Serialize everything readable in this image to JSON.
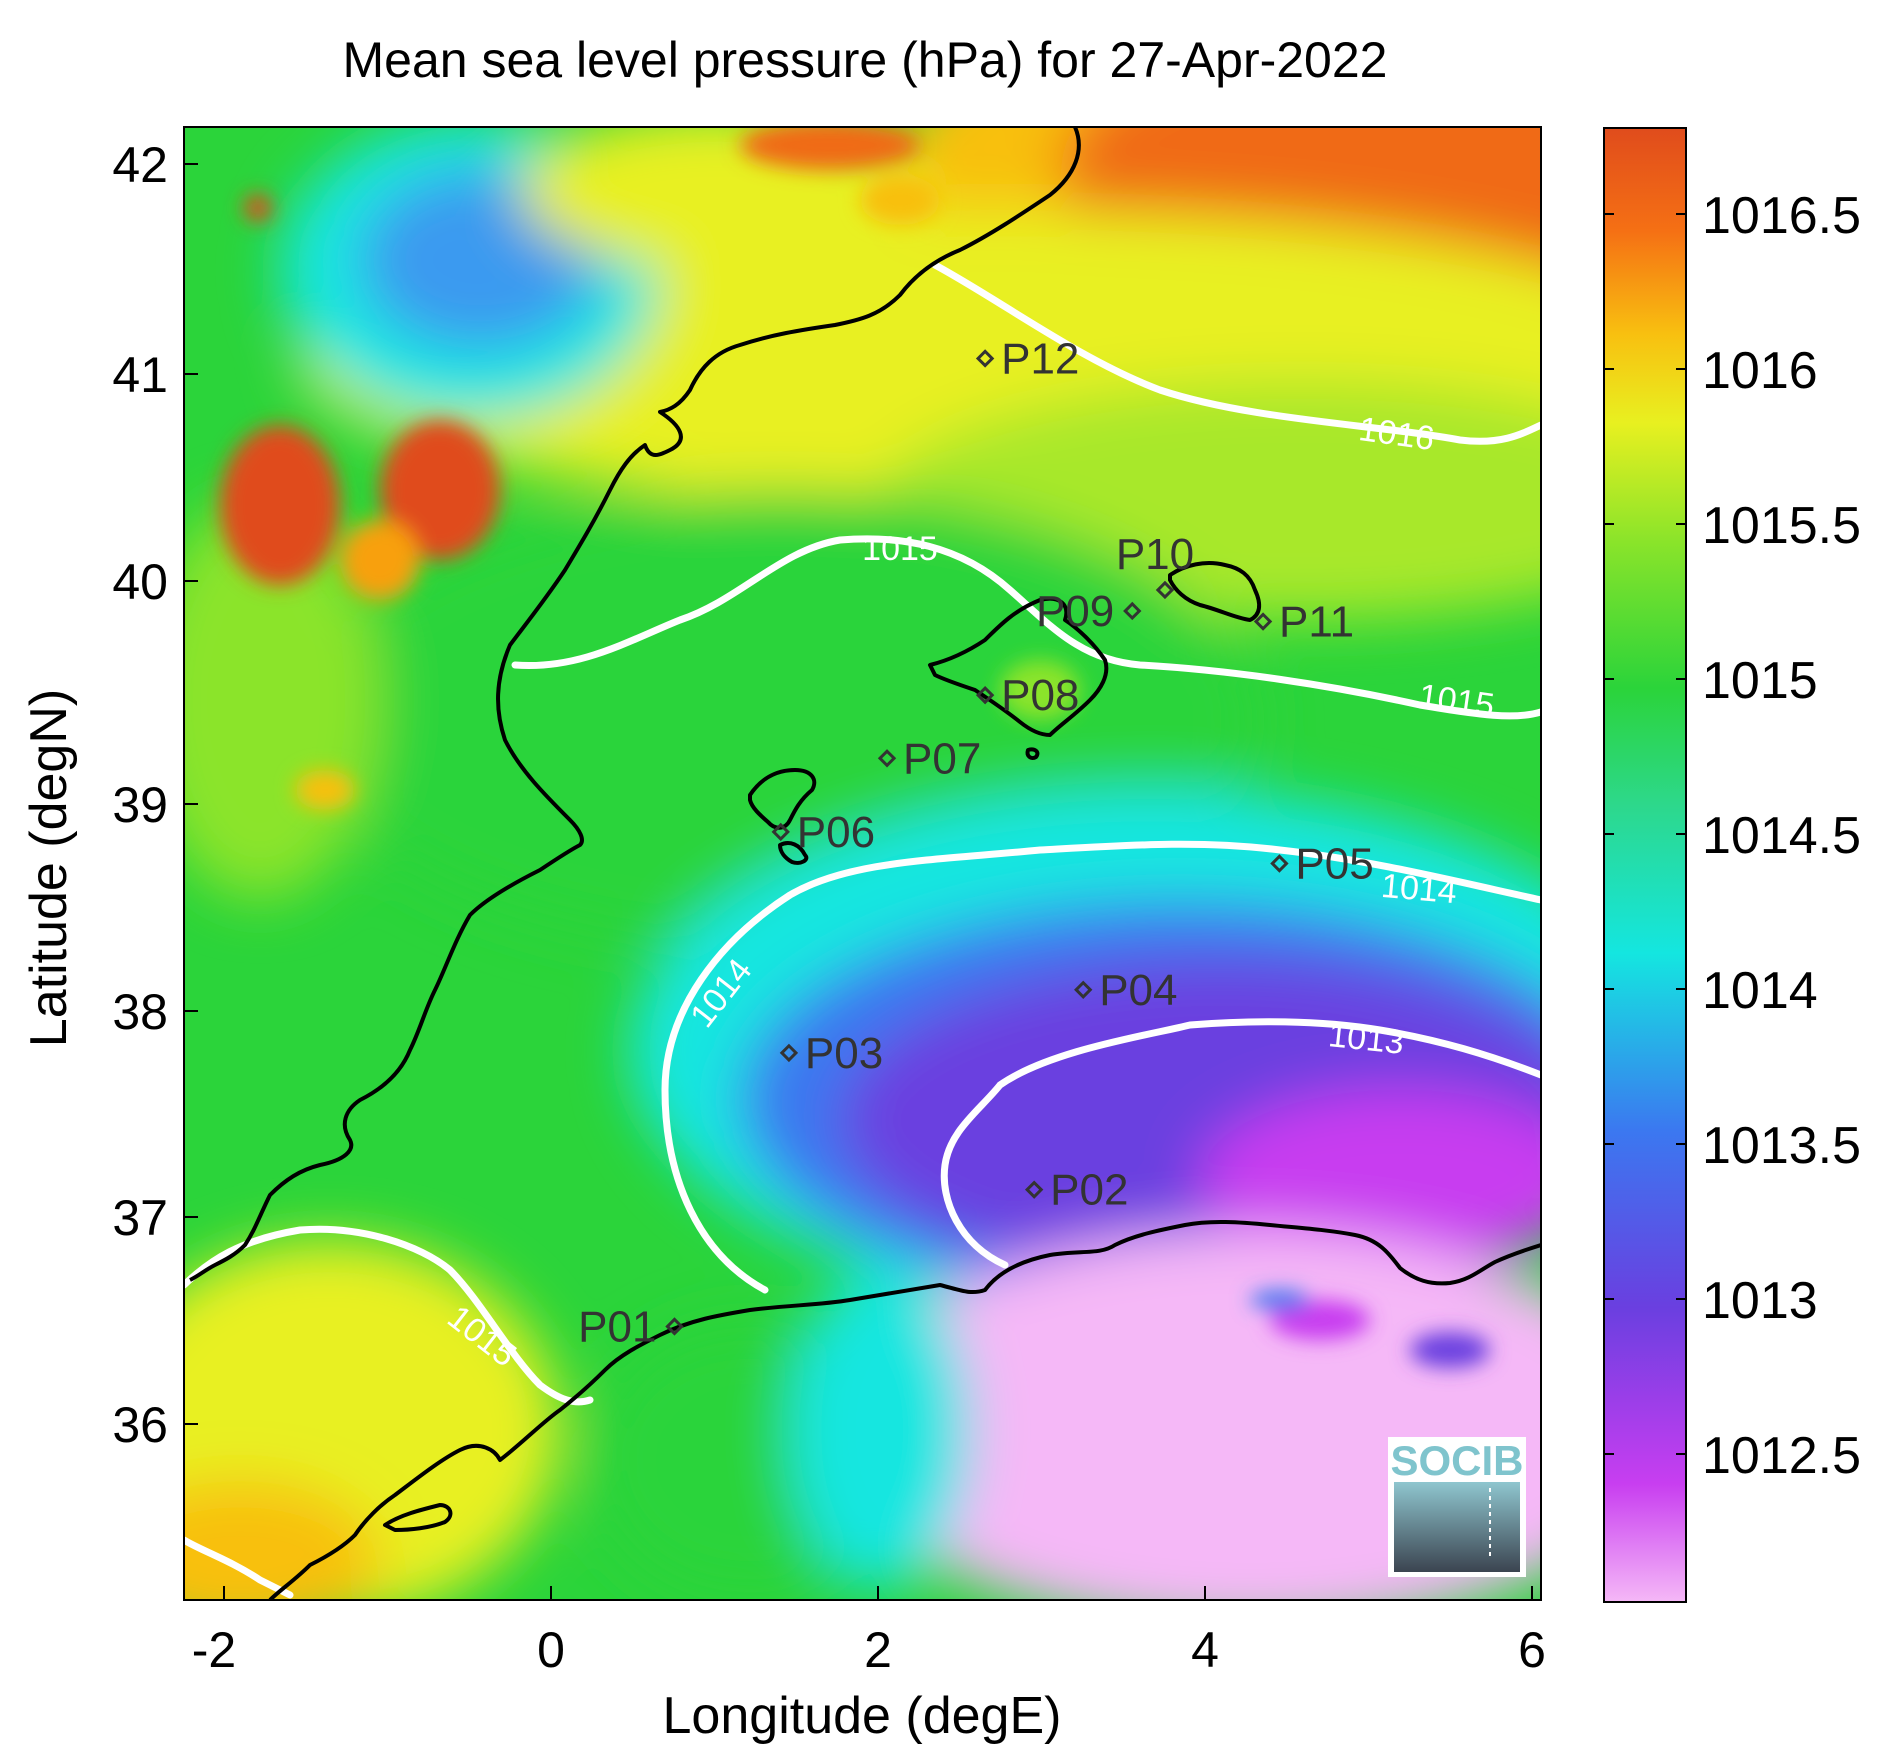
{
  "title": "Mean sea level pressure (hPa) for 27-Apr-2022",
  "xlabel": "Longitude (degE)",
  "ylabel": "Latitude (degN)",
  "logo_text": "SOCIB",
  "colors": {
    "contour": "#ffffff",
    "coast": "#000000",
    "marker": "#333333",
    "colormap": [
      "#f5b8f7",
      "#c83ef0",
      "#6a3fe0",
      "#3b78f0",
      "#14e6e0",
      "#2dd88c",
      "#2bd43a",
      "#8be42a",
      "#e8f020",
      "#f8c010",
      "#f57014",
      "#e04c1c"
    ]
  },
  "chart_data": {
    "type": "heatmap",
    "title": "Mean sea level pressure (hPa) for 27-Apr-2022",
    "xlabel": "Longitude (degE)",
    "ylabel": "Latitude (degN)",
    "xlim": [
      -2.2,
      6.1
    ],
    "ylim": [
      35.2,
      42.2
    ],
    "xticks": [
      "-2",
      "0",
      "2",
      "4",
      "6"
    ],
    "yticks": [
      "36",
      "37",
      "38",
      "39",
      "40",
      "41",
      "42"
    ],
    "colorbar": {
      "label": "",
      "range": [
        1012.05,
        1016.8
      ],
      "ticks": [
        "1012.5",
        "1013",
        "1013.5",
        "1014",
        "1014.5",
        "1015",
        "1015.5",
        "1016",
        "1016.5"
      ]
    },
    "contour_levels": [
      "1013",
      "1014",
      "1015",
      "1016"
    ],
    "stations": [
      {
        "name": "P01",
        "lon": 0.8,
        "lat": 36.5
      },
      {
        "name": "P02",
        "lon": 3.0,
        "lat": 37.15
      },
      {
        "name": "P03",
        "lon": 1.5,
        "lat": 37.8
      },
      {
        "name": "P04",
        "lon": 3.3,
        "lat": 38.1
      },
      {
        "name": "P05",
        "lon": 4.5,
        "lat": 38.7
      },
      {
        "name": "P06",
        "lon": 1.45,
        "lat": 38.85
      },
      {
        "name": "P07",
        "lon": 2.1,
        "lat": 39.2
      },
      {
        "name": "P08",
        "lon": 2.7,
        "lat": 39.5
      },
      {
        "name": "P09",
        "lon": 3.6,
        "lat": 39.9
      },
      {
        "name": "P10",
        "lon": 3.8,
        "lat": 40.0
      },
      {
        "name": "P11",
        "lon": 4.4,
        "lat": 39.85
      },
      {
        "name": "P12",
        "lon": 2.7,
        "lat": 41.1
      }
    ]
  }
}
